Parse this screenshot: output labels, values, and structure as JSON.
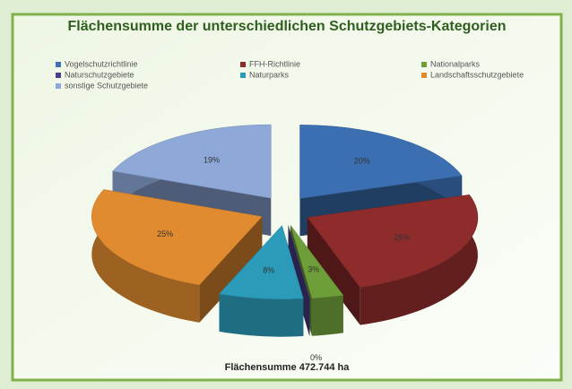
{
  "chart_data": {
    "type": "pie3d",
    "title": "Flächensumme der unterschiedlichen Schutzgebiets-Kategorien",
    "footer": "Flächensumme 472.744 ha",
    "categories": [
      "Vogelschutzrichtlinie",
      "FFH-Richtlinie",
      "Nationalparks",
      "Naturschutzgebiete",
      "Naturparks",
      "Landschaftsschutzgebiete",
      "sonstige Schutzgebiete"
    ],
    "values": [
      20,
      25,
      3,
      0,
      8,
      25,
      19
    ],
    "value_labels": [
      "20%",
      "25%",
      "3%",
      "0%",
      "8%",
      "25%",
      "19%"
    ],
    "colors": [
      "#3b6fb2",
      "#8e2b2b",
      "#6e9e3a",
      "#4a3e8c",
      "#2b9bb9",
      "#e08b2f",
      "#8ea8d8"
    ]
  }
}
